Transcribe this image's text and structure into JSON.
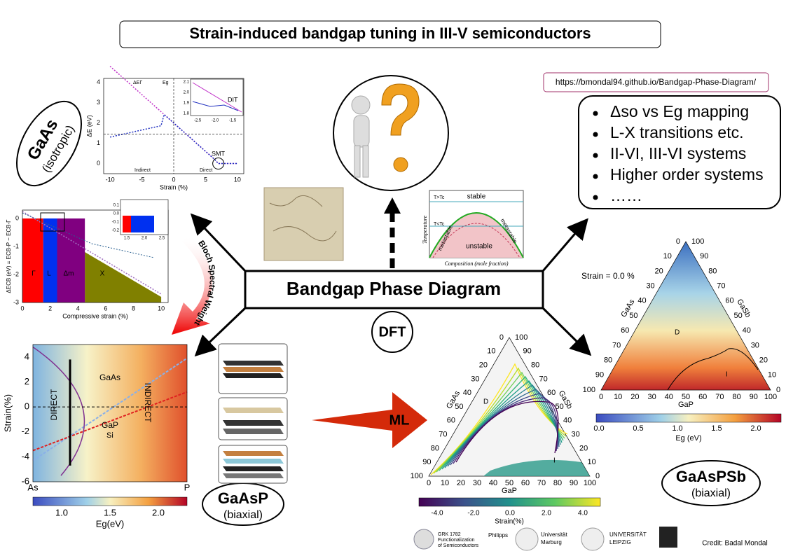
{
  "title": "Strain-induced bandgap tuning in III-V semiconductors",
  "url": "https://bmondal94.github.io/Bandgap-Phase-Diagram/",
  "bullets": [
    "Δso vs Eg mapping",
    "L-X transitions etc.",
    "II-VI, III-VI systems",
    "Higher order systems",
    "……"
  ],
  "center": {
    "label": "Bandgap Phase Diagram",
    "dft": "DFT",
    "ml": "ML",
    "bloch": "Bloch Spectral Weight"
  },
  "gaas": {
    "name": "GaAs",
    "note": "(isotropic)"
  },
  "gaasp": {
    "name": "GaAsP",
    "note": "(biaxial)"
  },
  "gaaspsb": {
    "name": "GaAsPSb",
    "note": "(biaxial)"
  },
  "credit": "Credit: Badal Mondal",
  "logos": [
    "GRK 1782",
    "Functionalization",
    "of Semiconductors",
    "Philipps",
    "Universität",
    "Marburg",
    "UNIVERSITÄT",
    "LEIPZIG"
  ],
  "panel_gaas": {
    "xticks": [
      -10,
      -5,
      0,
      5,
      10
    ],
    "yticks": [
      0,
      1,
      2,
      3,
      4
    ],
    "xlabel": "Strain (%)",
    "ylabel": "ΔE (eV)",
    "legend": [
      "ΔEΓ",
      "Eg"
    ],
    "notes": [
      "Indirect",
      "Direct",
      "SMT",
      "DIT"
    ],
    "inset_xticks": [
      "-2.5",
      "-2.0",
      "-1.5"
    ],
    "inset_yticks": [
      "2.1",
      "2.0",
      "1.9",
      "1.8"
    ]
  },
  "panel_bsw": {
    "xticks": [
      0,
      2,
      4,
      6,
      8,
      10
    ],
    "yticks": [
      0,
      -1,
      -2,
      -3
    ],
    "xlabel": "Compressive strain (%)",
    "ylabel": "ΔECB (eV) = ECB-P − ECB-Γ",
    "regions": [
      "Γ",
      "L",
      "Δm",
      "X"
    ],
    "inset_xticks": [
      "1.5",
      "2.0",
      "2.5"
    ],
    "inset_yticks": [
      "0.1",
      "0.0",
      "-0.1",
      "-0.2"
    ]
  },
  "panel_gaasp": {
    "yticks": [
      4,
      2,
      0,
      -2,
      -4,
      -6
    ],
    "xlabels": [
      "As",
      "P"
    ],
    "ylabel": "Strain(%)",
    "curves": [
      "GaAs",
      "GaP",
      "Si"
    ],
    "regions": [
      "DIRECT",
      "INDIRECT"
    ],
    "cbar_ticks": [
      "1.0",
      "1.5",
      "2.0"
    ],
    "cbar_label": "Eg(eV)"
  },
  "phase": {
    "labels": [
      "stable",
      "metastable",
      "metastable",
      "unstable"
    ],
    "ylabel": "Temperature",
    "xlabel": "Composition (mole fraction)",
    "temps": [
      "T>Tc",
      "T<Tc"
    ]
  },
  "tern_ml": {
    "ticks": [
      0,
      10,
      20,
      30,
      40,
      50,
      60,
      70,
      80,
      90,
      100
    ],
    "axes": [
      "GaAs",
      "GaSb",
      "GaP"
    ],
    "regions": [
      "D",
      "I"
    ],
    "cbar_ticks": [
      "-4.0",
      "-2.0",
      "0.0",
      "2.0",
      "4.0"
    ],
    "cbar_label": "Strain(%)"
  },
  "tern_dft": {
    "title": "Strain = 0.0 %",
    "ticks": [
      0,
      10,
      20,
      30,
      40,
      50,
      60,
      70,
      80,
      90,
      100
    ],
    "axes": [
      "GaAs",
      "GaSb",
      "GaP"
    ],
    "regions": [
      "D",
      "I"
    ],
    "cbar_ticks": [
      "0.0",
      "0.5",
      "1.0",
      "1.5",
      "2.0"
    ],
    "cbar_label": "Eg (eV)"
  }
}
